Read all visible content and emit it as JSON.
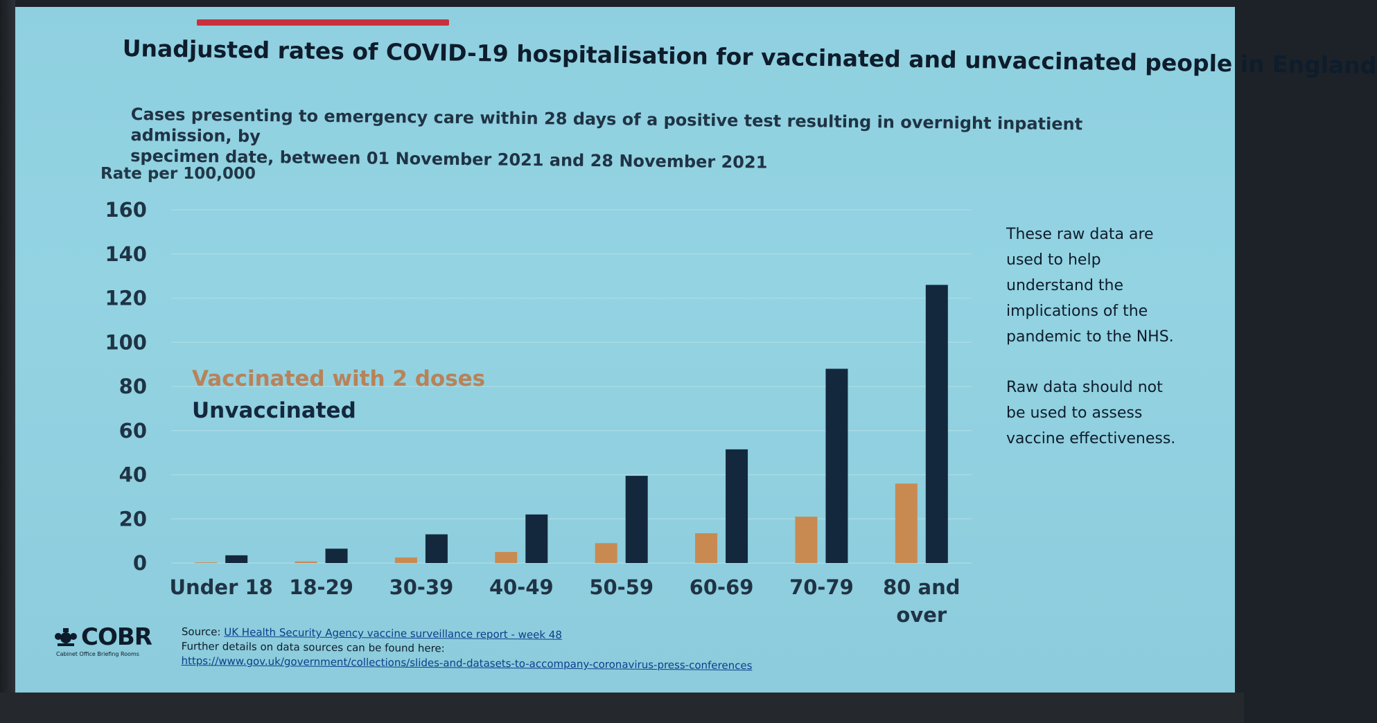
{
  "slide": {
    "title": "Unadjusted rates of COVID-19 hospitalisation for vaccinated and unvaccinated people in England",
    "subtitle_line1": "Cases presenting to emergency care within 28 days of a positive test resulting in overnight inpatient admission, by",
    "subtitle_line2": "specimen date, between 01 November 2021 and 28 November 2021",
    "accent_color": "#c8303c"
  },
  "side_note": {
    "para1_lines": [
      "These raw data are",
      "used to help",
      "understand the",
      "implications of the",
      "pandemic to the NHS."
    ],
    "para2_lines": [
      "Raw data should not",
      "be used to assess",
      "vaccine effectiveness."
    ]
  },
  "logo": {
    "name": "COBR",
    "subtext": "Cabinet Office Briefing Rooms",
    "icon": "royal-crest-icon"
  },
  "source": {
    "label": "Source:",
    "link_text": "UK Health Security Agency vaccine surveillance report - week 48",
    "further": "Further details on data sources can be found here:",
    "url": "https://www.gov.uk/government/collections/slides-and-datasets-to-accompany-coronavirus-press-conferences"
  },
  "chart_data": {
    "type": "bar",
    "title": "",
    "xlabel": "",
    "ylabel": "Rate per 100,000",
    "categories": [
      "Under 18",
      "18-29",
      "30-39",
      "40-49",
      "50-59",
      "60-69",
      "70-79",
      "80 and over"
    ],
    "category_lines": [
      [
        "Under 18"
      ],
      [
        "18-29"
      ],
      [
        "30-39"
      ],
      [
        "40-49"
      ],
      [
        "50-59"
      ],
      [
        "60-69"
      ],
      [
        "70-79"
      ],
      [
        "80 and",
        "over"
      ]
    ],
    "series": [
      {
        "name": "Vaccinated with 2 doses",
        "color": "#c98a52",
        "values": [
          0.3,
          0.7,
          2.5,
          5,
          9,
          13.5,
          21,
          36
        ]
      },
      {
        "name": "Unvaccinated",
        "color": "#14283d",
        "values": [
          3.5,
          6.5,
          13,
          22,
          39.5,
          51.5,
          88,
          126
        ]
      }
    ],
    "yticks": [
      0,
      20,
      40,
      60,
      80,
      100,
      120,
      140,
      160
    ],
    "ylim": [
      0,
      160
    ],
    "grid": true,
    "legend_position": "inside-left"
  }
}
